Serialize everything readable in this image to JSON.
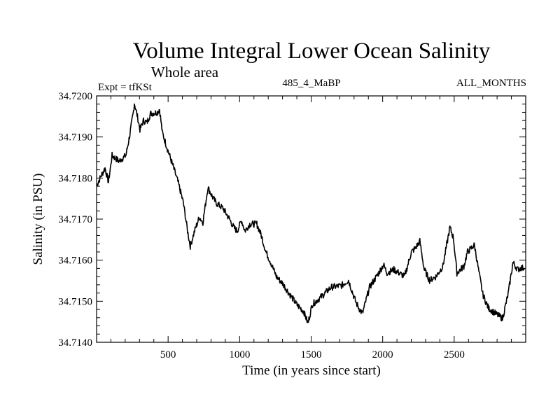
{
  "chart_data": {
    "type": "line",
    "title": "Volume Integral Lower Ocean Salinity",
    "subtitle": "Whole area",
    "annotations": {
      "left": "Expt = tfKSt",
      "center": "485_4_MaBP",
      "right": "ALL_MONTHS"
    },
    "xlabel": "Time (in years since start)",
    "ylabel": "Salinity (in PSU)",
    "xlim": [
      0,
      3000
    ],
    "ylim": [
      34.714,
      34.72
    ],
    "x_ticks": [
      500,
      1000,
      1500,
      2000,
      2500
    ],
    "x_tick_labels": [
      "500",
      "1000",
      "1500",
      "2000",
      "2500"
    ],
    "x_minor_step": 100,
    "y_ticks": [
      34.714,
      34.715,
      34.716,
      34.717,
      34.718,
      34.719,
      34.72
    ],
    "y_tick_labels": [
      "34.7140",
      "34.7150",
      "34.7160",
      "34.7170",
      "34.7180",
      "34.7190",
      "34.7200"
    ],
    "y_minor_step": 0.0002,
    "grid": false,
    "legend": "none",
    "series": [
      {
        "name": "salinity",
        "color": "#000000",
        "x": [
          0,
          34,
          59,
          83,
          108,
          157,
          205,
          230,
          259,
          264,
          289,
          303,
          328,
          352,
          377,
          425,
          440,
          460,
          499,
          538,
          572,
          607,
          636,
          655,
          685,
          719,
          743,
          778,
          812,
          836,
          885,
          934,
          958,
          983,
          1013,
          1037,
          1071,
          1120,
          1149,
          1184,
          1218,
          1257,
          1301,
          1350,
          1399,
          1448,
          1478,
          1507,
          1565,
          1639,
          1712,
          1761,
          1810,
          1834,
          1859,
          1908,
          1957,
          2006,
          2030,
          2079,
          2153,
          2201,
          2226,
          2260,
          2290,
          2328,
          2372,
          2421,
          2470,
          2495,
          2519,
          2568,
          2593,
          2642,
          2666,
          2700,
          2740,
          2789,
          2838,
          2877,
          2911,
          2945,
          2965,
          2990
        ],
        "y": [
          34.71782,
          34.71807,
          34.71824,
          34.7179,
          34.71855,
          34.71841,
          34.71855,
          34.71901,
          34.71964,
          34.71983,
          34.71944,
          34.71918,
          34.7194,
          34.71935,
          34.71957,
          34.7196,
          34.71968,
          34.7191,
          34.71867,
          34.71825,
          34.71787,
          34.71739,
          34.71671,
          34.71634,
          34.71671,
          34.71705,
          34.71692,
          34.71777,
          34.71753,
          34.71739,
          34.71726,
          34.71697,
          34.7168,
          34.71671,
          34.71697,
          34.71671,
          34.71688,
          34.71688,
          34.71663,
          34.7162,
          34.71594,
          34.7156,
          34.71543,
          34.71517,
          34.71492,
          34.71475,
          34.71446,
          34.71492,
          34.71509,
          34.71534,
          34.71538,
          34.71551,
          34.715,
          34.71483,
          34.7147,
          34.71534,
          34.7156,
          34.71589,
          34.71569,
          34.71577,
          34.7156,
          34.7162,
          34.71628,
          34.71646,
          34.71578,
          34.71551,
          34.7156,
          34.71585,
          34.7168,
          34.71654,
          34.71569,
          34.71585,
          34.7162,
          34.71637,
          34.71585,
          34.71517,
          34.71483,
          34.7147,
          34.71458,
          34.71517,
          34.71594,
          34.71577,
          34.71581,
          34.71581
        ]
      }
    ]
  }
}
